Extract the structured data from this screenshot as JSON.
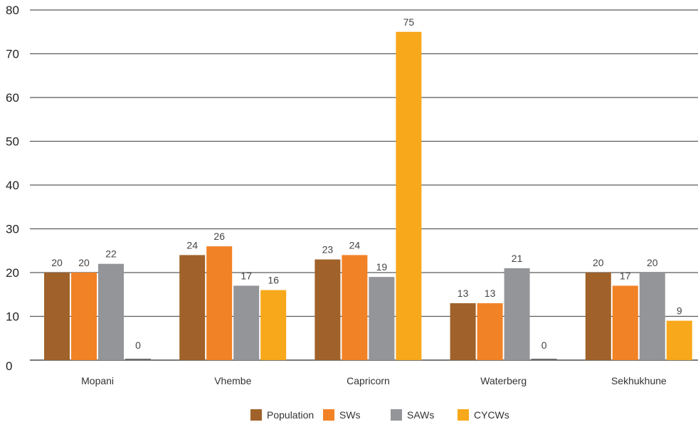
{
  "chart_data": {
    "type": "bar",
    "title": "",
    "xlabel": "",
    "ylabel": "",
    "ylim": [
      0,
      80
    ],
    "yticks": [
      0,
      10,
      20,
      30,
      40,
      50,
      60,
      70,
      80
    ],
    "grid": true,
    "legend_position": "bottom-center",
    "categories": [
      "Mopani",
      "Vhembe",
      "Capricorn",
      "Waterberg",
      "Sekhukhune"
    ],
    "series": [
      {
        "name": "Population",
        "color": "#A0622A",
        "values": [
          20,
          24,
          23,
          13,
          20
        ]
      },
      {
        "name": "SWs",
        "color": "#F28226",
        "values": [
          20,
          26,
          24,
          13,
          17
        ]
      },
      {
        "name": "SAWs",
        "color": "#939598",
        "values": [
          22,
          17,
          19,
          21,
          20
        ]
      },
      {
        "name": "CYCWs",
        "color": "#F7A81B",
        "values": [
          0,
          16,
          75,
          0,
          9
        ]
      }
    ],
    "zero_value_bar_color": "#6D6E70"
  }
}
